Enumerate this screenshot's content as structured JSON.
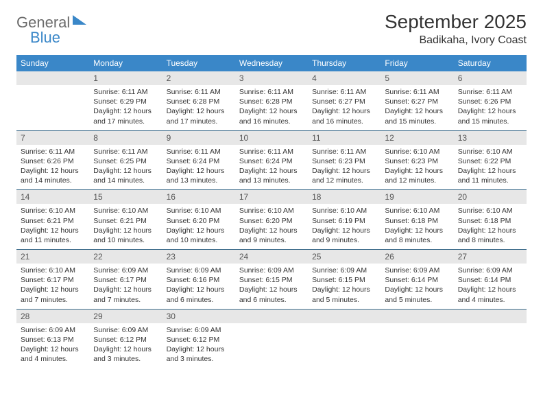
{
  "logo": {
    "text1": "General",
    "text2": "Blue"
  },
  "title": "September 2025",
  "location": "Badikaha, Ivory Coast",
  "colors": {
    "header_bg": "#3a87c8",
    "header_text": "#ffffff",
    "daynum_bg": "#e7e7e7",
    "daynum_text": "#555555",
    "body_text": "#333333",
    "rule": "#3a6a8a",
    "logo_gray": "#6b6b6b",
    "logo_blue": "#3a87c8",
    "page_bg": "#ffffff"
  },
  "typography": {
    "title_fontsize": 28,
    "location_fontsize": 16,
    "logo_fontsize": 22,
    "header_fontsize": 12,
    "daynum_fontsize": 12,
    "body_fontsize": 10.5
  },
  "layout": {
    "columns": 7,
    "rows": 5
  },
  "weekdays": [
    "Sunday",
    "Monday",
    "Tuesday",
    "Wednesday",
    "Thursday",
    "Friday",
    "Saturday"
  ],
  "weeks": [
    [
      {
        "day": null
      },
      {
        "day": 1,
        "sunrise": "6:11 AM",
        "sunset": "6:29 PM",
        "daylight": "12 hours and 17 minutes."
      },
      {
        "day": 2,
        "sunrise": "6:11 AM",
        "sunset": "6:28 PM",
        "daylight": "12 hours and 17 minutes."
      },
      {
        "day": 3,
        "sunrise": "6:11 AM",
        "sunset": "6:28 PM",
        "daylight": "12 hours and 16 minutes."
      },
      {
        "day": 4,
        "sunrise": "6:11 AM",
        "sunset": "6:27 PM",
        "daylight": "12 hours and 16 minutes."
      },
      {
        "day": 5,
        "sunrise": "6:11 AM",
        "sunset": "6:27 PM",
        "daylight": "12 hours and 15 minutes."
      },
      {
        "day": 6,
        "sunrise": "6:11 AM",
        "sunset": "6:26 PM",
        "daylight": "12 hours and 15 minutes."
      }
    ],
    [
      {
        "day": 7,
        "sunrise": "6:11 AM",
        "sunset": "6:26 PM",
        "daylight": "12 hours and 14 minutes."
      },
      {
        "day": 8,
        "sunrise": "6:11 AM",
        "sunset": "6:25 PM",
        "daylight": "12 hours and 14 minutes."
      },
      {
        "day": 9,
        "sunrise": "6:11 AM",
        "sunset": "6:24 PM",
        "daylight": "12 hours and 13 minutes."
      },
      {
        "day": 10,
        "sunrise": "6:11 AM",
        "sunset": "6:24 PM",
        "daylight": "12 hours and 13 minutes."
      },
      {
        "day": 11,
        "sunrise": "6:11 AM",
        "sunset": "6:23 PM",
        "daylight": "12 hours and 12 minutes."
      },
      {
        "day": 12,
        "sunrise": "6:10 AM",
        "sunset": "6:23 PM",
        "daylight": "12 hours and 12 minutes."
      },
      {
        "day": 13,
        "sunrise": "6:10 AM",
        "sunset": "6:22 PM",
        "daylight": "12 hours and 11 minutes."
      }
    ],
    [
      {
        "day": 14,
        "sunrise": "6:10 AM",
        "sunset": "6:21 PM",
        "daylight": "12 hours and 11 minutes."
      },
      {
        "day": 15,
        "sunrise": "6:10 AM",
        "sunset": "6:21 PM",
        "daylight": "12 hours and 10 minutes."
      },
      {
        "day": 16,
        "sunrise": "6:10 AM",
        "sunset": "6:20 PM",
        "daylight": "12 hours and 10 minutes."
      },
      {
        "day": 17,
        "sunrise": "6:10 AM",
        "sunset": "6:20 PM",
        "daylight": "12 hours and 9 minutes."
      },
      {
        "day": 18,
        "sunrise": "6:10 AM",
        "sunset": "6:19 PM",
        "daylight": "12 hours and 9 minutes."
      },
      {
        "day": 19,
        "sunrise": "6:10 AM",
        "sunset": "6:18 PM",
        "daylight": "12 hours and 8 minutes."
      },
      {
        "day": 20,
        "sunrise": "6:10 AM",
        "sunset": "6:18 PM",
        "daylight": "12 hours and 8 minutes."
      }
    ],
    [
      {
        "day": 21,
        "sunrise": "6:10 AM",
        "sunset": "6:17 PM",
        "daylight": "12 hours and 7 minutes."
      },
      {
        "day": 22,
        "sunrise": "6:09 AM",
        "sunset": "6:17 PM",
        "daylight": "12 hours and 7 minutes."
      },
      {
        "day": 23,
        "sunrise": "6:09 AM",
        "sunset": "6:16 PM",
        "daylight": "12 hours and 6 minutes."
      },
      {
        "day": 24,
        "sunrise": "6:09 AM",
        "sunset": "6:15 PM",
        "daylight": "12 hours and 6 minutes."
      },
      {
        "day": 25,
        "sunrise": "6:09 AM",
        "sunset": "6:15 PM",
        "daylight": "12 hours and 5 minutes."
      },
      {
        "day": 26,
        "sunrise": "6:09 AM",
        "sunset": "6:14 PM",
        "daylight": "12 hours and 5 minutes."
      },
      {
        "day": 27,
        "sunrise": "6:09 AM",
        "sunset": "6:14 PM",
        "daylight": "12 hours and 4 minutes."
      }
    ],
    [
      {
        "day": 28,
        "sunrise": "6:09 AM",
        "sunset": "6:13 PM",
        "daylight": "12 hours and 4 minutes."
      },
      {
        "day": 29,
        "sunrise": "6:09 AM",
        "sunset": "6:12 PM",
        "daylight": "12 hours and 3 minutes."
      },
      {
        "day": 30,
        "sunrise": "6:09 AM",
        "sunset": "6:12 PM",
        "daylight": "12 hours and 3 minutes."
      },
      {
        "day": null
      },
      {
        "day": null
      },
      {
        "day": null
      },
      {
        "day": null
      }
    ]
  ],
  "labels": {
    "sunrise": "Sunrise:",
    "sunset": "Sunset:",
    "daylight": "Daylight:"
  }
}
